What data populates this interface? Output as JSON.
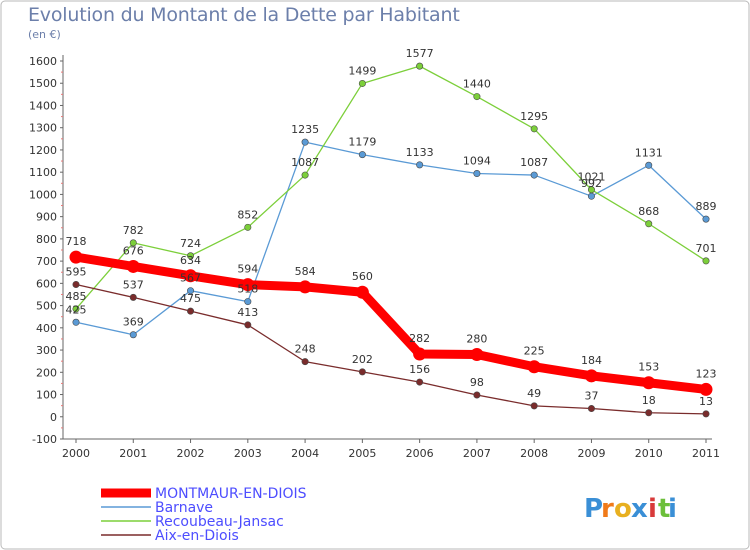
{
  "chart_data": {
    "type": "line",
    "title": "Evolution du Montant de la Dette par Habitant",
    "subtitle": "(en €)",
    "xlabel": "",
    "ylabel": "",
    "ylim": [
      -100,
      1600
    ],
    "yticks": [
      -100,
      0,
      100,
      200,
      300,
      400,
      500,
      600,
      700,
      800,
      900,
      1000,
      1100,
      1200,
      1300,
      1400,
      1500,
      1600
    ],
    "categories": [
      "2000",
      "2001",
      "2002",
      "2003",
      "2004",
      "2005",
      "2006",
      "2007",
      "2008",
      "2009",
      "2010",
      "2011"
    ],
    "grid": false,
    "legend_position": "bottom-left",
    "series": [
      {
        "name": "MONTMAUR-EN-DIOIS",
        "color": "#ff0000",
        "values": [
          718,
          676,
          634,
          594,
          584,
          560,
          282,
          280,
          225,
          184,
          153,
          123
        ]
      },
      {
        "name": "Barnave",
        "color": "#5a9ad5",
        "values": [
          425,
          369,
          567,
          518,
          1235,
          1179,
          1133,
          1094,
          1087,
          992,
          1131,
          889
        ]
      },
      {
        "name": "Recoubeau-Jansac",
        "color": "#7ccf3a",
        "values": [
          485,
          782,
          724,
          852,
          1087,
          1499,
          1577,
          1440,
          1295,
          1021,
          868,
          701
        ]
      },
      {
        "name": "Aix-en-Diois",
        "color": "#7a2c2c",
        "values": [
          595,
          537,
          475,
          413,
          248,
          202,
          156,
          98,
          49,
          37,
          18,
          13
        ]
      }
    ]
  },
  "logo": {
    "letters": [
      "P",
      "r",
      "o",
      "x",
      "i",
      "t",
      "i"
    ],
    "colors": [
      "#3a8fd6",
      "#f07a1a",
      "#e8b020",
      "#3a8fd6",
      "#d83a3a",
      "#6cbf3a",
      "#3a8fd6"
    ]
  }
}
